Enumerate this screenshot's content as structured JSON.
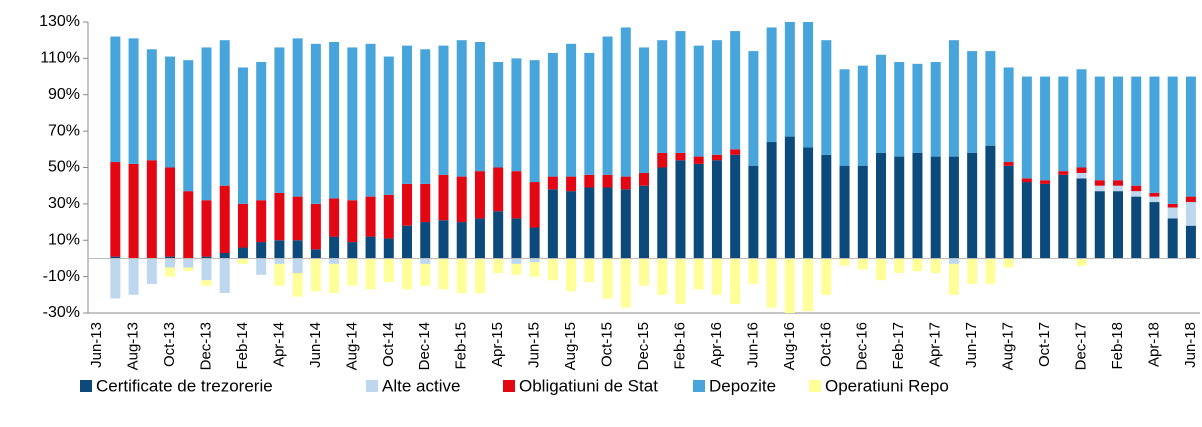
{
  "chart_data": {
    "type": "bar",
    "stacked": true,
    "grid": false,
    "legend": "bottom",
    "categories": [
      "Jun-13",
      null,
      "Aug-13",
      null,
      "Oct-13",
      null,
      "Dec-13",
      null,
      "Feb-14",
      null,
      "Apr-14",
      null,
      "Jun-14",
      null,
      "Aug-14",
      null,
      "Oct-14",
      null,
      "Dec-14",
      null,
      "Feb-15",
      null,
      "Apr-15",
      null,
      "Jun-15",
      null,
      "Aug-15",
      null,
      "Oct-15",
      null,
      "Dec-15",
      null,
      "Feb-16",
      null,
      "Apr-16",
      null,
      "Jun-16",
      null,
      "Aug-16",
      null,
      "Oct-16",
      null,
      "Dec-16",
      null,
      "Feb-17",
      null,
      "Apr-17",
      null,
      "Jun-17",
      null,
      "Aug-17",
      null,
      "Oct-17",
      null,
      "Dec-17",
      null,
      "Feb-18",
      null,
      "Apr-18",
      null,
      "Jun-18"
    ],
    "series": [
      {
        "name": "Certificate de trezorerie",
        "color": "#0d4a7c",
        "values": [
          null,
          1,
          0,
          0,
          1,
          0,
          1,
          3,
          6,
          9,
          10,
          10,
          5,
          12,
          9,
          12,
          11,
          18,
          20,
          21,
          20,
          22,
          26,
          22,
          17,
          38,
          37,
          39,
          39,
          38,
          40,
          50,
          54,
          52,
          54,
          57,
          51,
          64,
          67,
          61,
          57,
          51,
          51,
          58,
          56,
          58,
          56,
          56,
          58,
          62,
          51,
          42,
          41,
          46,
          44,
          37,
          37,
          34,
          31,
          22,
          18
        ]
      },
      {
        "name": "Alte active",
        "color": "#bdd7ee",
        "values": [
          null,
          -22,
          -20,
          -14,
          -5,
          -5,
          -12,
          -19,
          0,
          -9,
          -3,
          -8,
          0,
          -3,
          0,
          0,
          0,
          0,
          -3,
          0,
          0,
          0,
          0,
          -3,
          -2,
          0,
          0,
          0,
          0,
          0,
          0,
          0,
          0,
          0,
          0,
          0,
          0,
          0,
          0,
          0,
          0,
          0,
          0,
          0,
          0,
          0,
          0,
          -3,
          0,
          0,
          0,
          0,
          0,
          0,
          3,
          3,
          3,
          3,
          3,
          6,
          13
        ]
      },
      {
        "name": "Obligatiuni de Stat",
        "color": "#e30613",
        "values": [
          null,
          52,
          52,
          54,
          49,
          37,
          31,
          37,
          24,
          23,
          26,
          24,
          25,
          21,
          23,
          22,
          24,
          23,
          21,
          25,
          25,
          26,
          24,
          26,
          25,
          7,
          8,
          7,
          7,
          7,
          7,
          8,
          4,
          4,
          3,
          3,
          0,
          0,
          0,
          0,
          0,
          0,
          0,
          0,
          0,
          0,
          0,
          0,
          0,
          0,
          2,
          2,
          2,
          2,
          3,
          3,
          3,
          3,
          2,
          2,
          3
        ]
      },
      {
        "name": "Depozite",
        "color": "#47a5dc",
        "values": [
          null,
          69,
          69,
          61,
          61,
          72,
          84,
          80,
          75,
          76,
          80,
          87,
          88,
          86,
          84,
          84,
          76,
          76,
          74,
          71,
          75,
          71,
          58,
          62,
          67,
          68,
          73,
          67,
          76,
          82,
          69,
          62,
          67,
          61,
          63,
          65,
          63,
          63,
          63,
          69,
          63,
          53,
          55,
          54,
          52,
          49,
          52,
          64,
          56,
          52,
          52,
          56,
          57,
          52,
          54,
          57,
          57,
          60,
          64,
          70,
          66
        ]
      },
      {
        "name": "Operatiuni Repo",
        "color": "#ffff99",
        "values": [
          null,
          0,
          0,
          0,
          -5,
          -2,
          -3,
          0,
          -3,
          0,
          -12,
          -13,
          -18,
          -16,
          -15,
          -17,
          -13,
          -17,
          -12,
          -17,
          -19,
          -19,
          -8,
          -6,
          -8,
          -12,
          -18,
          -13,
          -22,
          -27,
          -15,
          -20,
          -25,
          -17,
          -20,
          -25,
          -14,
          -27,
          -30,
          -29,
          -20,
          -4,
          -6,
          -12,
          -8,
          -7,
          -8,
          -17,
          -14,
          -14,
          -5,
          0,
          0,
          0,
          -4,
          0,
          0,
          0,
          0,
          0,
          0
        ]
      }
    ],
    "ylim": [
      -30,
      130
    ],
    "yticks": [
      {
        "value": -30,
        "label": "-30%"
      },
      {
        "value": -10,
        "label": "-10%"
      },
      {
        "value": 10,
        "label": "10%"
      },
      {
        "value": 30,
        "label": "30%"
      },
      {
        "value": 50,
        "label": "50%"
      },
      {
        "value": 70,
        "label": "70%"
      },
      {
        "value": 90,
        "label": "90%"
      },
      {
        "value": 110,
        "label": "110%"
      },
      {
        "value": 130,
        "label": "130%"
      }
    ]
  }
}
